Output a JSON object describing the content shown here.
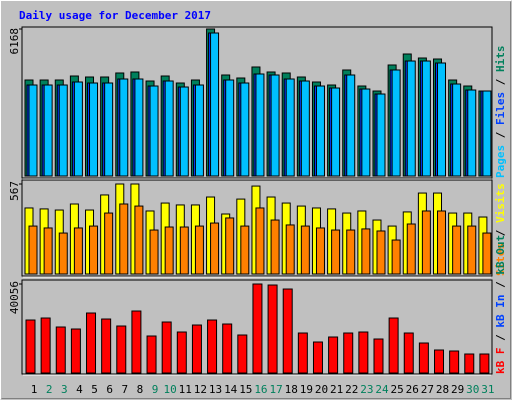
{
  "chart_data": [
    {
      "type": "bar",
      "title": "Daily usage for December 2017",
      "ylim": [
        0,
        6168
      ],
      "yticks": [
        6168
      ],
      "legend_separator": " / ",
      "series": [
        {
          "name": "Hits",
          "color": "#00805c",
          "values": [
            4028,
            4028,
            4028,
            4196,
            4154,
            4154,
            4322,
            4364,
            3986,
            4196,
            3902,
            4028,
            6168,
            4238,
            4112,
            4574,
            4364,
            4322,
            4154,
            3944,
            3818,
            4448,
            3776,
            3566,
            4658,
            5119,
            4951,
            4909,
            4028,
            3776,
            3566
          ]
        },
        {
          "name": "Files",
          "color": "#0040ff",
          "values": [
            3818,
            3818,
            3818,
            3944,
            3902,
            3902,
            4070,
            4070,
            3776,
            3986,
            3734,
            3818,
            6000,
            4028,
            3902,
            4280,
            4238,
            4070,
            3986,
            3776,
            3692,
            4238,
            3650,
            3440,
            4448,
            4825,
            4825,
            4741,
            3860,
            3608,
            3566
          ]
        },
        {
          "name": "Pages",
          "color": "#00c0ff",
          "values": [
            3818,
            3818,
            3818,
            3944,
            3902,
            3902,
            4070,
            4070,
            3776,
            3986,
            3734,
            3818,
            6000,
            4028,
            3902,
            4280,
            4238,
            4070,
            3986,
            3776,
            3692,
            4238,
            3650,
            3440,
            4448,
            4825,
            4825,
            4741,
            3860,
            3608,
            3566
          ]
        }
      ]
    },
    {
      "type": "bar",
      "ylim": [
        0,
        567
      ],
      "yticks": [
        567
      ],
      "legend_separator": " / ",
      "series": [
        {
          "name": "Visits",
          "color": "#ffff00",
          "values": [
            416,
            410,
            403,
            441,
            403,
            498,
            567,
            567,
            397,
            447,
            435,
            435,
            485,
            378,
            472,
            554,
            485,
            447,
            428,
            416,
            410,
            384,
            397,
            340,
            302,
            391,
            510,
            510,
            384,
            384,
            359
          ]
        },
        {
          "name": "Sites",
          "color": "#ff8000",
          "values": [
            302,
            290,
            258,
            290,
            302,
            384,
            441,
            428,
            277,
            296,
            296,
            302,
            321,
            353,
            302,
            416,
            340,
            309,
            302,
            290,
            277,
            277,
            284,
            271,
            214,
            315,
            397,
            397,
            302,
            302,
            258
          ]
        }
      ]
    },
    {
      "type": "bar",
      "ylim": [
        0,
        40056
      ],
      "yticks": [
        40056
      ],
      "legend_separator": " / ",
      "legend": [
        {
          "name": "kB Out",
          "color": "#00805c"
        },
        {
          "name": "kB In",
          "color": "#0040ff"
        }
      ],
      "series": [
        {
          "name": "kB F",
          "color": "#ff0000",
          "values": [
            23850,
            24750,
            20700,
            19800,
            27000,
            24300,
            21150,
            27900,
            16650,
            22950,
            18450,
            21600,
            23850,
            22050,
            17100,
            40056,
            39600,
            37800,
            18000,
            13950,
            16200,
            18000,
            18450,
            15300,
            24750,
            18000,
            13500,
            10350,
            9900,
            8550,
            8550
          ]
        }
      ],
      "categories": [
        "1",
        "2",
        "3",
        "4",
        "5",
        "6",
        "7",
        "8",
        "9",
        "10",
        "11",
        "12",
        "13",
        "14",
        "15",
        "16",
        "17",
        "18",
        "19",
        "20",
        "21",
        "22",
        "23",
        "24",
        "25",
        "26",
        "27",
        "28",
        "29",
        "30",
        "31"
      ],
      "category_colors": [
        "#000000",
        "#00805c",
        "#00805c",
        "#000000",
        "#000000",
        "#000000",
        "#000000",
        "#000000",
        "#00805c",
        "#00805c",
        "#000000",
        "#000000",
        "#000000",
        "#000000",
        "#000000",
        "#00805c",
        "#00805c",
        "#000000",
        "#000000",
        "#000000",
        "#000000",
        "#000000",
        "#00805c",
        "#00805c",
        "#000000",
        "#000000",
        "#000000",
        "#000000",
        "#000000",
        "#00805c",
        "#00805c"
      ]
    }
  ]
}
